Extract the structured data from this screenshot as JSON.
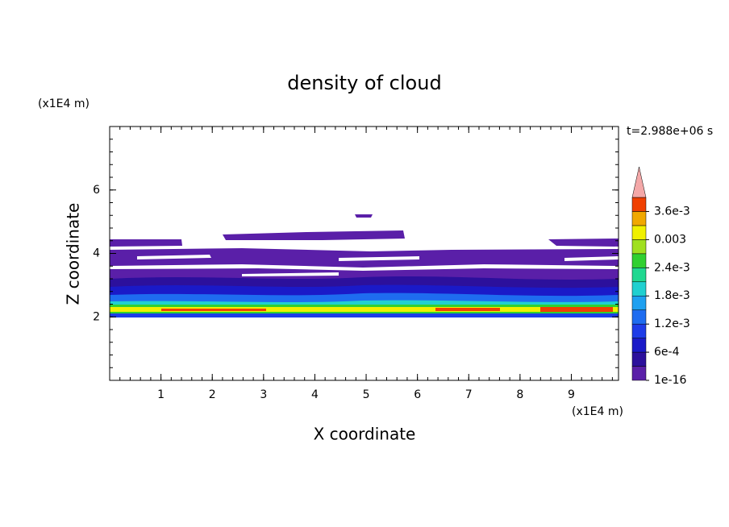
{
  "chart_data": {
    "type": "contour",
    "title": "density of cloud",
    "x_label": "X coordinate",
    "y_label": "Z coordinate",
    "x_unit": "(x1E4 m)",
    "y_unit": "(x1E4 m)",
    "annotation": "t=2.988e+06 s",
    "xlim": [
      0,
      9.92
    ],
    "ylim": [
      0,
      8
    ],
    "xticks": [
      1,
      2,
      3,
      4,
      5,
      6,
      7,
      8,
      9
    ],
    "yticks": [
      2,
      4,
      6
    ],
    "colorbar": {
      "lim": [
        1e-16,
        0.0039
      ],
      "ticks": [
        {
          "value": 1e-16,
          "label": "1e-16"
        },
        {
          "value": 0.0006,
          "label": "6e-4"
        },
        {
          "value": 0.0012,
          "label": "1.2e-3"
        },
        {
          "value": 0.0018,
          "label": "1.8e-3"
        },
        {
          "value": 0.0024,
          "label": "2.4e-3"
        },
        0.003,
        {
          "value": 0.0036,
          "label": "3.6e-3"
        }
      ],
      "colors": [
        "#5a1fa8",
        "#2c109c",
        "#1a1ac8",
        "#1e3ce8",
        "#1e6cf0",
        "#1ea0f0",
        "#20d0d0",
        "#20d890",
        "#30d030",
        "#a0e020",
        "#f0f000",
        "#f0a800",
        "#f04000"
      ],
      "extend_color": "#f4a8a8"
    }
  }
}
